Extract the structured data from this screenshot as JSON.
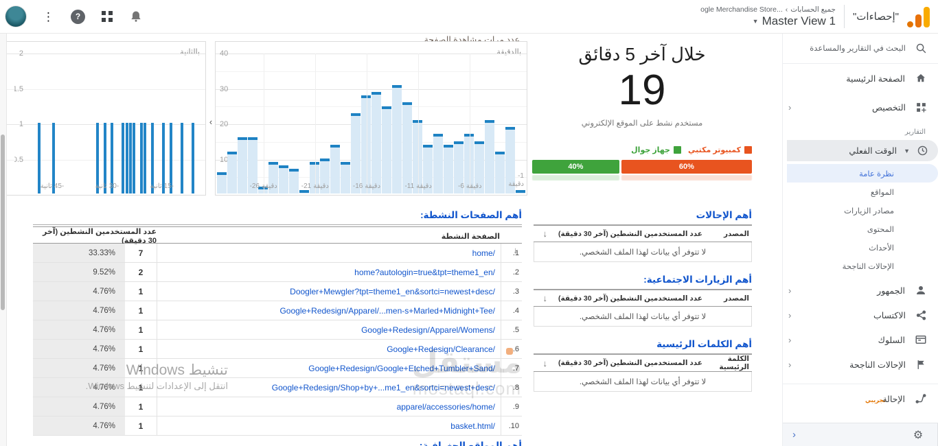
{
  "header": {
    "product_title": "\"إحصاءات\"",
    "breadcrumb_account": "جميع الحسابات",
    "breadcrumb_sep": "›",
    "breadcrumb_property": "...ogle Merchandise Store",
    "view_caret": "▼",
    "view_name": "Master View 1",
    "help_label": "?",
    "dots": "⋮"
  },
  "sidebar": {
    "search_label": "البحث في التقارير والمساعدة",
    "home_label": "الصفحة الرئيسية",
    "customization_label": "التخصيص",
    "reports_label": "التقارير",
    "realtime_label": "الوقت الفعلي",
    "realtime_caret": "▼",
    "realtime_children": [
      "نظرة عامة",
      "المواقع",
      "مصادر الزيارات",
      "المحتوى",
      "الأحداث",
      "الإحالات الناجحة"
    ],
    "active_child": "نظرة عامة",
    "sections": [
      {
        "label": "الجمهور",
        "icon": "person"
      },
      {
        "label": "الاكتساب",
        "icon": "share"
      },
      {
        "label": "السلوك",
        "icon": "browser"
      },
      {
        "label": "الإحالات الناجحة",
        "icon": "flag"
      }
    ],
    "attribution_label": "الإحالة",
    "attribution_badge": "تجريبي",
    "expander_glyph": "‹",
    "collapse_glyph": "›",
    "gear_glyph": "⚙"
  },
  "overview": {
    "heading": "خلال آخر 5 دقائق",
    "active_users": "19",
    "caption": "مستخدم نشط على الموقع الإلكتروني",
    "legend": [
      {
        "label": "كمبيوتر مكتبي",
        "color": "#e8541f"
      },
      {
        "label": "جهاز جوال",
        "color": "#3fa33c"
      }
    ],
    "split": [
      {
        "label": "60%",
        "width": 60,
        "color": "#e8541f"
      },
      {
        "label": "40%",
        "width": 40,
        "color": "#3fa33c"
      }
    ]
  },
  "chart_data": [
    {
      "type": "bar",
      "title": "عدد مرات مشاهدة الصفحة",
      "unit_label": "بالدقيقة",
      "x_start": -30,
      "x_end": -1,
      "values": [
        6,
        12,
        16,
        16,
        2,
        9,
        8,
        7,
        1,
        9,
        10,
        14,
        9,
        23,
        28,
        29,
        25,
        31,
        26,
        21,
        14,
        17,
        14,
        15,
        17,
        15,
        21,
        12,
        19,
        1
      ],
      "ylim": [
        0,
        40
      ],
      "ytick_labels": [
        "40",
        "30",
        "20",
        "10"
      ],
      "xticks": [
        {
          "num": "-26",
          "word": "دقيقة",
          "index": 4
        },
        {
          "num": "-21",
          "word": "دقيقة",
          "index": 9
        },
        {
          "num": "-16",
          "word": "دقيقة",
          "index": 14
        },
        {
          "num": "-11",
          "word": "دقيقة",
          "index": 19
        },
        {
          "num": "-6",
          "word": "دقيقة",
          "index": 24
        }
      ],
      "last_tick": {
        "num": "-1",
        "word": "دقيقة"
      },
      "bar_fill": "#d8e9f6",
      "bar_cap": "#1e82c3",
      "grid": true
    },
    {
      "type": "bar",
      "title": "",
      "unit_label": "بالثانية",
      "seconds_with_hits": [
        -49,
        -45,
        -33,
        -31,
        -29,
        -26,
        -25,
        -24,
        -23,
        -21,
        -20,
        -18,
        -15,
        -13,
        -10,
        -7
      ],
      "value_per_bar": 1,
      "ylim": [
        0,
        2
      ],
      "ytick_labels": [
        "2",
        "1.5",
        "1",
        "0.5"
      ],
      "xticks": [
        {
          "word": "ثانية",
          "num": "45-",
          "sec": -45
        },
        {
          "word": "ثانية",
          "num": "30-",
          "sec": -30
        },
        {
          "word": "ثانية",
          "num": "15-",
          "sec": -15
        }
      ],
      "bar_color": "#2285c7",
      "grid": true
    }
  ],
  "tables": {
    "active_pages": {
      "title": "أهم الصفحات النشطة:",
      "col_page": "الصفحة النشطة",
      "col_users": "عدد المستخدمين النشطين (آخر 30 دقيقة)",
      "sort_arrow": "↓",
      "rows": [
        {
          "rank": "1.",
          "page": "home/",
          "users": "7",
          "pct": "33.33%"
        },
        {
          "rank": "2.",
          "page": "home?autologin=true&tpt=theme1_en/",
          "users": "2",
          "pct": "9.52%"
        },
        {
          "rank": "3.",
          "page": "Doogler+Mewgler?tpt=theme1_en&sortci=newest+desc/",
          "users": "1",
          "pct": "4.76%"
        },
        {
          "rank": "4.",
          "page": "Google+Redesign/Apparel/...men-s+Marled+Midnight+Tee/",
          "users": "1",
          "pct": "4.76%"
        },
        {
          "rank": "5.",
          "page": "Google+Redesign/Apparel/Womens/",
          "users": "1",
          "pct": "4.76%"
        },
        {
          "rank": "6.",
          "page": "Google+Redesign/Clearance/",
          "users": "1",
          "pct": "4.76%"
        },
        {
          "rank": "7.",
          "page": "Google+Redesign/Google+Etched+Tumbler+Sand/",
          "users": "1",
          "pct": "4.76%"
        },
        {
          "rank": "8.",
          "page": "Google+Redesign/Shop+by+...me1_en&sortci=newest+desc/",
          "users": "1",
          "pct": "4.76%"
        },
        {
          "rank": "9.",
          "page": "apparel/accessories/home/",
          "users": "1",
          "pct": "4.76%"
        },
        {
          "rank": "10.",
          "page": "basket.html/",
          "users": "1",
          "pct": "4.76%"
        }
      ]
    },
    "referrals": {
      "title": "أهم الإحالات",
      "col_source": "المصدر",
      "col_users": "عدد المستخدمين النشطين (آخر 30 دقيقة)",
      "sort_arrow": "↓"
    },
    "social": {
      "title": "أهم الزيارات الاجتماعية:",
      "col_source": "المصدر",
      "col_users": "عدد المستخدمين النشطين (آخر 30 دقيقة)",
      "sort_arrow": "↓"
    },
    "keywords": {
      "title": "أهم الكلمات الرئيسية",
      "col_source": "الكلمة الرئيسية",
      "col_users": "عدد المستخدمين النشطين (آخر 30 دقيقة)",
      "sort_arrow": "↓"
    },
    "empty_text": "لا تتوفر أي بيانات لهذا الملف الشخصي.",
    "next_section_title": "أهم المواقع الجغرافية:"
  },
  "watermarks": {
    "windows_line1": "تنشيط Windows",
    "windows_line2": "انتقل إلى الإعدادات لتنشيط Windows.",
    "brand_name": "مستقل",
    "brand_domain": "mostaql.com"
  }
}
